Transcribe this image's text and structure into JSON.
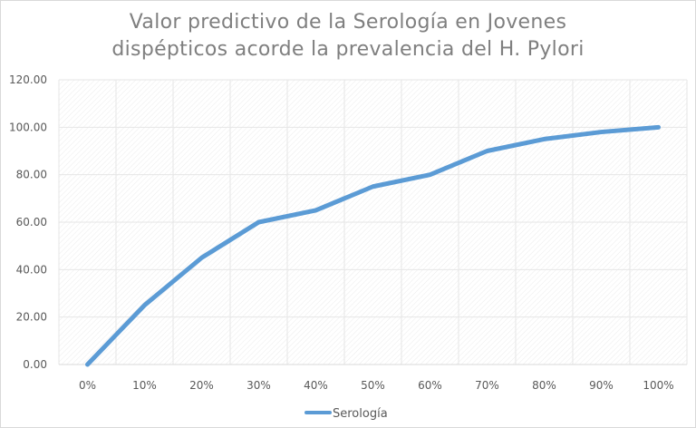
{
  "chart_data": {
    "type": "line",
    "title": "Valor predictivo de la Serología en Jovenes dispépticos acorde la prevalencia del H. Pylori",
    "title_lines": [
      "Valor predictivo de la Serología en Jovenes",
      "dispépticos acorde la prevalencia del H. Pylori"
    ],
    "categories": [
      "0%",
      "10%",
      "20%",
      "30%",
      "40%",
      "50%",
      "60%",
      "70%",
      "80%",
      "90%",
      "100%"
    ],
    "series": [
      {
        "name": "Serología",
        "color": "#5b9bd5",
        "values": [
          0,
          25,
          45,
          60,
          65,
          75,
          80,
          90,
          95,
          98,
          100
        ]
      }
    ],
    "xlabel": "",
    "ylabel": "",
    "ylim": [
      0,
      120
    ],
    "yticks": [
      "0.00",
      "20.00",
      "40.00",
      "60.00",
      "80.00",
      "100.00",
      "120.00"
    ],
    "grid": true,
    "legend": "bottom"
  }
}
